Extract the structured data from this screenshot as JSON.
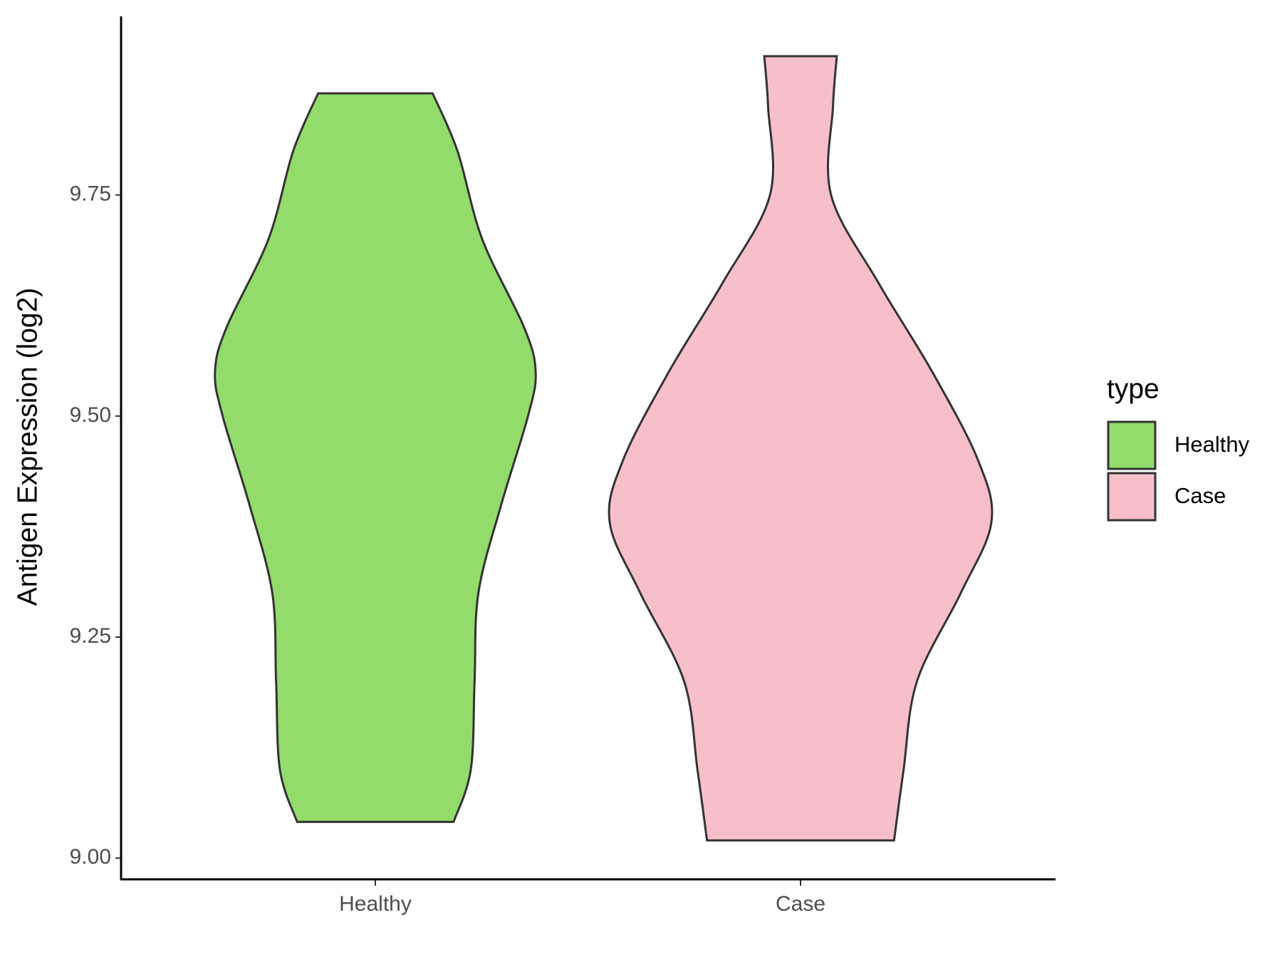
{
  "chart_data": {
    "type": "violin",
    "y_label": "Antigen Expression (log2)",
    "legend_title": "type",
    "legend_position": "right",
    "categories": [
      "Healthy",
      "Case"
    ],
    "series": [
      {
        "name": "Healthy",
        "color": "#93DB6B",
        "y": [
          9.041,
          9.1,
          9.2,
          9.3,
          9.4,
          9.5,
          9.55,
          9.6,
          9.7,
          9.8,
          9.865
        ],
        "density": [
          0.41,
          0.5,
          0.52,
          0.54,
          0.66,
          0.8,
          0.84,
          0.78,
          0.56,
          0.43,
          0.3
        ]
      },
      {
        "name": "Case",
        "color": "#F7BFCA",
        "y": [
          9.02,
          9.1,
          9.2,
          9.3,
          9.38,
          9.45,
          9.55,
          9.65,
          9.75,
          9.85,
          9.907
        ],
        "density": [
          0.49,
          0.54,
          0.61,
          0.84,
          1.0,
          0.93,
          0.69,
          0.41,
          0.16,
          0.17,
          0.19
        ]
      }
    ],
    "ylim": [
      8.976,
      9.952
    ],
    "yticks": [
      {
        "value": 9,
        "label": "9.00"
      },
      {
        "value": 9.25,
        "label": "9.25"
      },
      {
        "value": 9.5,
        "label": "9.50"
      },
      {
        "value": 9.75,
        "label": "9.75"
      }
    ]
  }
}
